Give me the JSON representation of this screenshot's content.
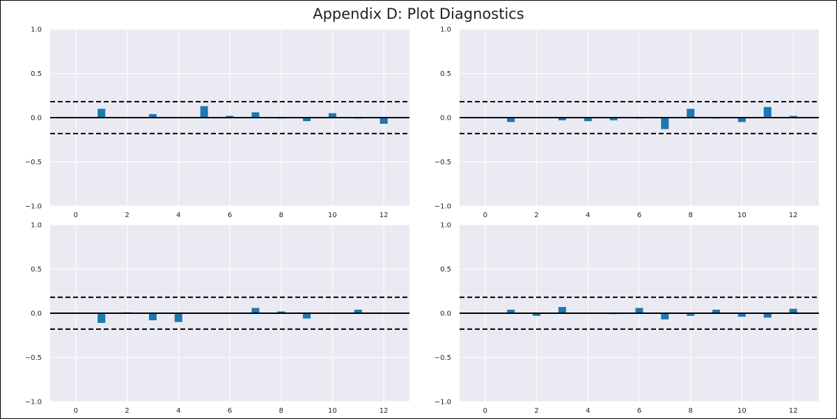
{
  "title": "Appendix D: Plot Diagnostics",
  "colors": {
    "plot_background": "#eaeaf2",
    "grid": "#ffffff",
    "bar": "#1f77b4",
    "zero_line": "#000000",
    "confidence_band": "#000000"
  },
  "chart_data": [
    {
      "type": "bar",
      "position": "top-left",
      "x": [
        0,
        1,
        2,
        3,
        4,
        5,
        6,
        7,
        8,
        9,
        10,
        11,
        12
      ],
      "values": [
        0,
        0.1,
        0,
        0.04,
        0,
        0.13,
        0.02,
        0.06,
        -0.01,
        -0.04,
        0.05,
        -0.01,
        -0.07
      ],
      "confidence_band": [
        -0.18,
        0.18
      ],
      "xlim": [
        -1,
        13
      ],
      "ylim": [
        -1.0,
        1.0
      ],
      "xticks": [
        "0",
        "2",
        "4",
        "6",
        "8",
        "10",
        "12"
      ],
      "yticks": [
        "1.0",
        "0.5",
        "0.0",
        "−0.5",
        "−1.0"
      ],
      "grid": true
    },
    {
      "type": "bar",
      "position": "top-right",
      "x": [
        0,
        1,
        2,
        3,
        4,
        5,
        6,
        7,
        8,
        9,
        10,
        11,
        12
      ],
      "values": [
        0,
        -0.05,
        0,
        -0.03,
        -0.04,
        -0.03,
        -0.01,
        -0.13,
        0.1,
        -0.01,
        -0.05,
        0.12,
        0.02
      ],
      "confidence_band": [
        -0.18,
        0.18
      ],
      "xlim": [
        -1,
        13
      ],
      "ylim": [
        -1.0,
        1.0
      ],
      "xticks": [
        "0",
        "2",
        "4",
        "6",
        "8",
        "10",
        "12"
      ],
      "yticks": [
        "1.0",
        "0.5",
        "0.0",
        "−0.5",
        "−1.0"
      ],
      "grid": true
    },
    {
      "type": "bar",
      "position": "bottom-left",
      "x": [
        0,
        1,
        2,
        3,
        4,
        5,
        6,
        7,
        8,
        9,
        10,
        11,
        12
      ],
      "values": [
        0,
        -0.11,
        0.01,
        -0.08,
        -0.1,
        0,
        0,
        0.06,
        0.02,
        -0.06,
        0,
        0.04,
        0
      ],
      "confidence_band": [
        -0.18,
        0.18
      ],
      "xlim": [
        -1,
        13
      ],
      "ylim": [
        -1.0,
        1.0
      ],
      "xticks": [
        "0",
        "2",
        "4",
        "6",
        "8",
        "10",
        "12"
      ],
      "yticks": [
        "1.0",
        "0.5",
        "0.0",
        "−0.5",
        "−1.0"
      ],
      "grid": true
    },
    {
      "type": "bar",
      "position": "bottom-right",
      "x": [
        0,
        1,
        2,
        3,
        4,
        5,
        6,
        7,
        8,
        9,
        10,
        11,
        12
      ],
      "values": [
        0,
        0.04,
        -0.03,
        0.07,
        0,
        -0.01,
        0.06,
        -0.07,
        -0.03,
        0.04,
        -0.04,
        -0.05,
        0.05
      ],
      "confidence_band": [
        -0.18,
        0.18
      ],
      "xlim": [
        -1,
        13
      ],
      "ylim": [
        -1.0,
        1.0
      ],
      "xticks": [
        "0",
        "2",
        "4",
        "6",
        "8",
        "10",
        "12"
      ],
      "yticks": [
        "1.0",
        "0.5",
        "0.0",
        "−0.5",
        "−1.0"
      ],
      "grid": true
    }
  ]
}
